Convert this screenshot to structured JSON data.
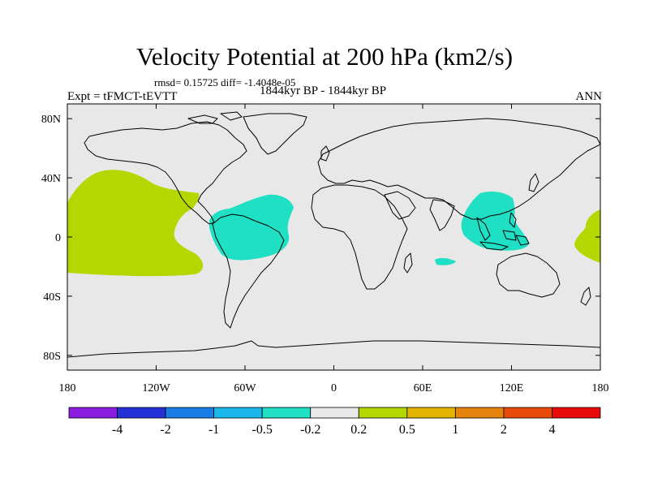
{
  "title": "Velocity Potential at 200 hPa (km2/s)",
  "stats": "rmsd= 0.15725  diff= -1.4048e-05",
  "left_label": "Expt = tFMCT-tEVTT",
  "center_label": "1844kyr BP - 1844kyr BP",
  "right_label": "ANN",
  "colors": {
    "ocean_bg": "#e8e8e8",
    "positive_fill": "#b4d700",
    "negative_fill": "#1fe0c4"
  },
  "map": {
    "lon_ticks": [
      "180",
      "120W",
      "60W",
      "0",
      "60E",
      "120E",
      "180"
    ],
    "lat_ticks": [
      "80N",
      "40N",
      "0",
      "40S",
      "80S"
    ],
    "lon_values": [
      -180,
      -120,
      -60,
      0,
      60,
      120,
      180
    ],
    "lat_values": [
      80,
      40,
      0,
      -40,
      -80
    ]
  },
  "colorbar": {
    "colors": [
      "#8a1de0",
      "#2430d8",
      "#1a7ce6",
      "#1ab8ea",
      "#1fe0c4",
      "#e8e8e8",
      "#b4d700",
      "#e0b400",
      "#e6820e",
      "#e84a0a",
      "#e80a0a"
    ],
    "labels": [
      "-4",
      "-2",
      "-1",
      "-0.5",
      "-0.2",
      "0.2",
      "0.5",
      "1",
      "2",
      "4"
    ]
  }
}
